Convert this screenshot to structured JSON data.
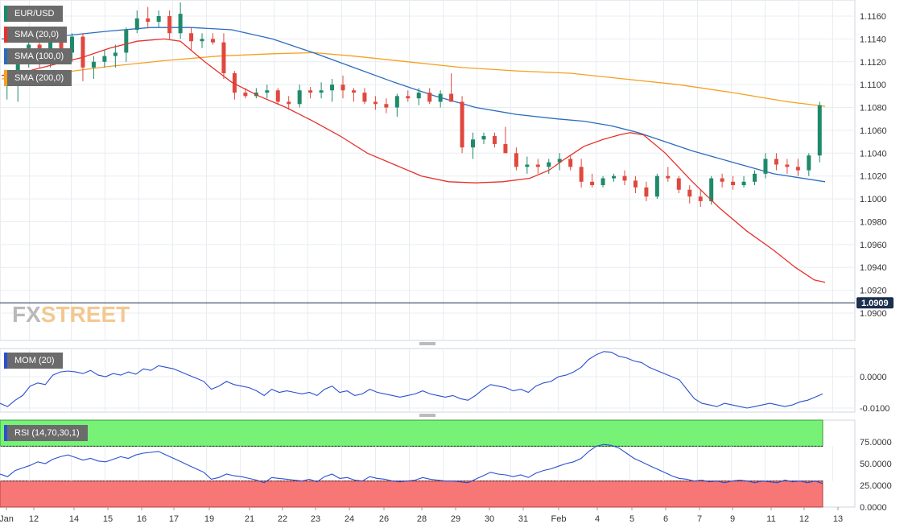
{
  "chart_data": [
    {
      "type": "candlestick",
      "title": "EUR/USD",
      "y_ticks": [
        "1.1160",
        "1.1140",
        "1.1120",
        "1.1100",
        "1.1080",
        "1.1060",
        "1.1040",
        "1.1020",
        "1.1000",
        "1.0980",
        "1.0960",
        "1.0940",
        "1.0920",
        "1.0900"
      ],
      "ylim": [
        1.089,
        1.1172
      ],
      "x_ticks": [
        "Jan",
        "12",
        "14",
        "15",
        "16",
        "17",
        "19",
        "21",
        "22",
        "23",
        "24",
        "26",
        "28",
        "29",
        "30",
        "31",
        "Feb",
        "4",
        "5",
        "6",
        "7",
        "9",
        "11",
        "12",
        "13"
      ],
      "current_price": "1.0909",
      "indicators": [
        {
          "name": "SMA (20,0)",
          "color": "#e8302a"
        },
        {
          "name": "SMA (100,0)",
          "color": "#2a6cbf"
        },
        {
          "name": "SMA (200,0)",
          "color": "#f5a020"
        }
      ],
      "sma20": [
        [
          0,
          1.1108
        ],
        [
          10,
          1.1112
        ],
        [
          20,
          1.1118
        ],
        [
          30,
          1.1124
        ],
        [
          40,
          1.1132
        ],
        [
          50,
          1.1138
        ],
        [
          60,
          1.114
        ],
        [
          66,
          1.1138
        ],
        [
          75,
          1.112
        ],
        [
          85,
          1.1102
        ],
        [
          95,
          1.109
        ],
        [
          105,
          1.108
        ],
        [
          115,
          1.1068
        ],
        [
          125,
          1.1055
        ],
        [
          135,
          1.104
        ],
        [
          145,
          1.103
        ],
        [
          155,
          1.102
        ],
        [
          165,
          1.1015
        ],
        [
          175,
          1.1014
        ],
        [
          185,
          1.1015
        ],
        [
          195,
          1.1018
        ],
        [
          202,
          1.1025
        ],
        [
          208,
          1.1035
        ],
        [
          215,
          1.1046
        ],
        [
          222,
          1.1052
        ],
        [
          228,
          1.1056
        ],
        [
          232,
          1.1058
        ],
        [
          237,
          1.1056
        ],
        [
          245,
          1.104
        ],
        [
          255,
          1.1015
        ],
        [
          265,
          1.0992
        ],
        [
          275,
          1.0972
        ],
        [
          285,
          1.0955
        ],
        [
          293,
          1.094
        ],
        [
          300,
          1.0929
        ],
        [
          304,
          1.0927
        ]
      ],
      "sma100": [
        [
          0,
          1.114
        ],
        [
          20,
          1.1142
        ],
        [
          40,
          1.1147
        ],
        [
          55,
          1.115
        ],
        [
          70,
          1.115
        ],
        [
          85,
          1.1148
        ],
        [
          100,
          1.114
        ],
        [
          115,
          1.1128
        ],
        [
          130,
          1.1115
        ],
        [
          145,
          1.1102
        ],
        [
          160,
          1.109
        ],
        [
          175,
          1.108
        ],
        [
          190,
          1.1074
        ],
        [
          205,
          1.107
        ],
        [
          215,
          1.1068
        ],
        [
          225,
          1.1064
        ],
        [
          235,
          1.1058
        ],
        [
          245,
          1.105
        ],
        [
          255,
          1.1042
        ],
        [
          270,
          1.1032
        ],
        [
          285,
          1.1022
        ],
        [
          304,
          1.1015
        ]
      ],
      "sma200": [
        [
          0,
          1.1105
        ],
        [
          20,
          1.111
        ],
        [
          40,
          1.1116
        ],
        [
          60,
          1.1121
        ],
        [
          80,
          1.1125
        ],
        [
          100,
          1.1127
        ],
        [
          115,
          1.1128
        ],
        [
          130,
          1.1125
        ],
        [
          150,
          1.112
        ],
        [
          170,
          1.1115
        ],
        [
          190,
          1.1112
        ],
        [
          210,
          1.111
        ],
        [
          230,
          1.1105
        ],
        [
          250,
          1.11
        ],
        [
          270,
          1.1093
        ],
        [
          290,
          1.1085
        ],
        [
          304,
          1.1081
        ]
      ],
      "candles": [
        {
          "x": 2,
          "o": 1.11,
          "h": 1.111,
          "l": 1.1087,
          "c": 1.1105
        },
        {
          "x": 6,
          "o": 1.11,
          "h": 1.1125,
          "l": 1.1085,
          "c": 1.112
        },
        {
          "x": 10,
          "o": 1.112,
          "h": 1.1145,
          "l": 1.1115,
          "c": 1.1135
        },
        {
          "x": 14,
          "o": 1.1135,
          "h": 1.1142,
          "l": 1.1115,
          "c": 1.1125
        },
        {
          "x": 18,
          "o": 1.1125,
          "h": 1.115,
          "l": 1.1115,
          "c": 1.1145
        },
        {
          "x": 22,
          "o": 1.1145,
          "h": 1.115,
          "l": 1.112,
          "c": 1.1128
        },
        {
          "x": 26,
          "o": 1.1128,
          "h": 1.1145,
          "l": 1.112,
          "c": 1.1142
        },
        {
          "x": 30,
          "o": 1.1142,
          "h": 1.1145,
          "l": 1.1103,
          "c": 1.1115
        },
        {
          "x": 34,
          "o": 1.1115,
          "h": 1.1125,
          "l": 1.1105,
          "c": 1.112
        },
        {
          "x": 38,
          "o": 1.112,
          "h": 1.113,
          "l": 1.1115,
          "c": 1.1125
        },
        {
          "x": 42,
          "o": 1.1125,
          "h": 1.1135,
          "l": 1.1115,
          "c": 1.1128
        },
        {
          "x": 46,
          "o": 1.1128,
          "h": 1.115,
          "l": 1.112,
          "c": 1.1148
        },
        {
          "x": 50,
          "o": 1.1148,
          "h": 1.1165,
          "l": 1.1145,
          "c": 1.1158
        },
        {
          "x": 54,
          "o": 1.1158,
          "h": 1.1168,
          "l": 1.115,
          "c": 1.1155
        },
        {
          "x": 58,
          "o": 1.1155,
          "h": 1.1165,
          "l": 1.115,
          "c": 1.116
        },
        {
          "x": 62,
          "o": 1.116,
          "h": 1.1165,
          "l": 1.114,
          "c": 1.1145
        },
        {
          "x": 66,
          "o": 1.1145,
          "h": 1.1172,
          "l": 1.114,
          "c": 1.1162
        },
        {
          "x": 70,
          "o": 1.1145,
          "h": 1.115,
          "l": 1.113,
          "c": 1.1138
        },
        {
          "x": 74,
          "o": 1.1138,
          "h": 1.1145,
          "l": 1.1132,
          "c": 1.114
        },
        {
          "x": 78,
          "o": 1.114,
          "h": 1.1145,
          "l": 1.1135,
          "c": 1.1137
        },
        {
          "x": 82,
          "o": 1.1137,
          "h": 1.1145,
          "l": 1.1105,
          "c": 1.111
        },
        {
          "x": 86,
          "o": 1.111,
          "h": 1.1112,
          "l": 1.1087,
          "c": 1.1093
        },
        {
          "x": 90,
          "o": 1.1093,
          "h": 1.1097,
          "l": 1.1088,
          "c": 1.109
        },
        {
          "x": 94,
          "o": 1.109,
          "h": 1.1097,
          "l": 1.1088,
          "c": 1.1093
        },
        {
          "x": 98,
          "o": 1.1093,
          "h": 1.11,
          "l": 1.1088,
          "c": 1.1095
        },
        {
          "x": 102,
          "o": 1.1095,
          "h": 1.1097,
          "l": 1.1083,
          "c": 1.1085
        },
        {
          "x": 106,
          "o": 1.1085,
          "h": 1.109,
          "l": 1.1078,
          "c": 1.1083
        },
        {
          "x": 110,
          "o": 1.1083,
          "h": 1.11,
          "l": 1.108,
          "c": 1.1095
        },
        {
          "x": 114,
          "o": 1.1095,
          "h": 1.1098,
          "l": 1.1088,
          "c": 1.1093
        },
        {
          "x": 118,
          "o": 1.1093,
          "h": 1.1102,
          "l": 1.1088,
          "c": 1.1095
        },
        {
          "x": 122,
          "o": 1.1095,
          "h": 1.1105,
          "l": 1.1085,
          "c": 1.11
        },
        {
          "x": 126,
          "o": 1.11,
          "h": 1.1108,
          "l": 1.1088,
          "c": 1.1095
        },
        {
          "x": 130,
          "o": 1.1095,
          "h": 1.1097,
          "l": 1.1085,
          "c": 1.1093
        },
        {
          "x": 134,
          "o": 1.1093,
          "h": 1.1097,
          "l": 1.1083,
          "c": 1.1085
        },
        {
          "x": 138,
          "o": 1.1085,
          "h": 1.109,
          "l": 1.1078,
          "c": 1.1083
        },
        {
          "x": 142,
          "o": 1.1083,
          "h": 1.1088,
          "l": 1.1075,
          "c": 1.108
        },
        {
          "x": 146,
          "o": 1.108,
          "h": 1.1092,
          "l": 1.1072,
          "c": 1.109
        },
        {
          "x": 150,
          "o": 1.109,
          "h": 1.1095,
          "l": 1.1085,
          "c": 1.1088
        },
        {
          "x": 154,
          "o": 1.1088,
          "h": 1.1097,
          "l": 1.1082,
          "c": 1.1093
        },
        {
          "x": 158,
          "o": 1.1093,
          "h": 1.1097,
          "l": 1.1083,
          "c": 1.1085
        },
        {
          "x": 162,
          "o": 1.1085,
          "h": 1.1095,
          "l": 1.108,
          "c": 1.1092
        },
        {
          "x": 166,
          "o": 1.1092,
          "h": 1.111,
          "l": 1.1085,
          "c": 1.1085
        },
        {
          "x": 170,
          "o": 1.1085,
          "h": 1.109,
          "l": 1.104,
          "c": 1.1045
        },
        {
          "x": 174,
          "o": 1.1045,
          "h": 1.1058,
          "l": 1.1035,
          "c": 1.1052
        },
        {
          "x": 178,
          "o": 1.1052,
          "h": 1.1058,
          "l": 1.1048,
          "c": 1.1055
        },
        {
          "x": 182,
          "o": 1.1055,
          "h": 1.1058,
          "l": 1.1045,
          "c": 1.1048
        },
        {
          "x": 186,
          "o": 1.1048,
          "h": 1.1063,
          "l": 1.104,
          "c": 1.104
        },
        {
          "x": 190,
          "o": 1.104,
          "h": 1.1045,
          "l": 1.1025,
          "c": 1.1028
        },
        {
          "x": 194,
          "o": 1.1028,
          "h": 1.1037,
          "l": 1.1022,
          "c": 1.103
        },
        {
          "x": 198,
          "o": 1.103,
          "h": 1.1035,
          "l": 1.1022,
          "c": 1.1028
        },
        {
          "x": 202,
          "o": 1.1028,
          "h": 1.1035,
          "l": 1.1022,
          "c": 1.1032
        },
        {
          "x": 206,
          "o": 1.1032,
          "h": 1.104,
          "l": 1.1025,
          "c": 1.1035
        },
        {
          "x": 210,
          "o": 1.1035,
          "h": 1.1038,
          "l": 1.1025,
          "c": 1.1028
        },
        {
          "x": 214,
          "o": 1.1028,
          "h": 1.1035,
          "l": 1.101,
          "c": 1.1015
        },
        {
          "x": 218,
          "o": 1.1015,
          "h": 1.1022,
          "l": 1.101,
          "c": 1.1012
        },
        {
          "x": 222,
          "o": 1.1012,
          "h": 1.102,
          "l": 1.101,
          "c": 1.1018
        },
        {
          "x": 226,
          "o": 1.1018,
          "h": 1.1022,
          "l": 1.1015,
          "c": 1.102
        },
        {
          "x": 230,
          "o": 1.102,
          "h": 1.1025,
          "l": 1.1012,
          "c": 1.1016
        },
        {
          "x": 234,
          "o": 1.1016,
          "h": 1.102,
          "l": 1.1005,
          "c": 1.101
        },
        {
          "x": 238,
          "o": 1.101,
          "h": 1.1015,
          "l": 1.0998,
          "c": 1.1002
        },
        {
          "x": 242,
          "o": 1.1002,
          "h": 1.1022,
          "l": 1.1,
          "c": 1.102
        },
        {
          "x": 246,
          "o": 1.102,
          "h": 1.1028,
          "l": 1.1015,
          "c": 1.1018
        },
        {
          "x": 250,
          "o": 1.1018,
          "h": 1.102,
          "l": 1.1005,
          "c": 1.1008
        },
        {
          "x": 254,
          "o": 1.1008,
          "h": 1.1012,
          "l": 1.0996,
          "c": 1.1002
        },
        {
          "x": 258,
          "o": 1.1002,
          "h": 1.1008,
          "l": 1.0993,
          "c": 1.0998
        },
        {
          "x": 262,
          "o": 1.0998,
          "h": 1.102,
          "l": 1.0995,
          "c": 1.1018
        },
        {
          "x": 266,
          "o": 1.1018,
          "h": 1.1022,
          "l": 1.101,
          "c": 1.1015
        },
        {
          "x": 270,
          "o": 1.1015,
          "h": 1.102,
          "l": 1.1008,
          "c": 1.1012
        },
        {
          "x": 274,
          "o": 1.1012,
          "h": 1.102,
          "l": 1.101,
          "c": 1.1015
        },
        {
          "x": 278,
          "o": 1.1015,
          "h": 1.1025,
          "l": 1.1012,
          "c": 1.1022
        },
        {
          "x": 282,
          "o": 1.1022,
          "h": 1.104,
          "l": 1.1018,
          "c": 1.1035
        },
        {
          "x": 286,
          "o": 1.1035,
          "h": 1.104,
          "l": 1.1025,
          "c": 1.103
        },
        {
          "x": 290,
          "o": 1.103,
          "h": 1.1035,
          "l": 1.1022,
          "c": 1.1028
        },
        {
          "x": 294,
          "o": 1.1028,
          "h": 1.1035,
          "l": 1.102,
          "c": 1.1025
        },
        {
          "x": 298,
          "o": 1.1025,
          "h": 1.104,
          "l": 1.102,
          "c": 1.1038
        },
        {
          "x": 302,
          "o": 1.1038,
          "h": 1.1085,
          "l": 1.1032,
          "c": 1.1082
        }
      ]
    },
    {
      "type": "line",
      "title": "MOM (20)",
      "y_ticks": [
        "0.0000",
        "-0.0100"
      ],
      "ylim": [
        -0.0115,
        0.009
      ],
      "values": [
        -0.0085,
        -0.0095,
        -0.0075,
        -0.006,
        -0.003,
        -0.002,
        -0.0025,
        0.0005,
        0.0015,
        0.0018,
        0.0015,
        0.001,
        0.002,
        0.0005,
        0.0,
        0.001,
        0.0005,
        0.0015,
        0.0008,
        0.0025,
        0.002,
        0.0035,
        0.003,
        0.0025,
        0.0015,
        0.0005,
        -0.0005,
        -0.0015,
        -0.004,
        -0.003,
        -0.0015,
        -0.0025,
        -0.003,
        -0.0035,
        -0.0045,
        -0.006,
        -0.004,
        -0.005,
        -0.0045,
        -0.005,
        -0.0055,
        -0.005,
        -0.006,
        -0.004,
        -0.003,
        -0.005,
        -0.0045,
        -0.006,
        -0.0055,
        -0.004,
        -0.005,
        -0.0055,
        -0.006,
        -0.0065,
        -0.006,
        -0.0055,
        -0.0045,
        -0.0055,
        -0.006,
        -0.0065,
        -0.006,
        -0.007,
        -0.0075,
        -0.006,
        -0.004,
        -0.0025,
        -0.003,
        -0.0035,
        -0.0045,
        -0.004,
        -0.005,
        -0.003,
        -0.002,
        -0.0015,
        0.0,
        0.0005,
        0.0015,
        0.003,
        0.0055,
        0.007,
        0.008,
        0.0078,
        0.0065,
        0.006,
        0.005,
        0.0045,
        0.003,
        0.002,
        0.001,
        0.0,
        -0.001,
        -0.004,
        -0.007,
        -0.0085,
        -0.009,
        -0.0095,
        -0.0085,
        -0.009,
        -0.0095,
        -0.01,
        -0.0095,
        -0.009,
        -0.0085,
        -0.009,
        -0.0095,
        -0.009,
        -0.008,
        -0.0075,
        -0.0065,
        -0.0055
      ]
    },
    {
      "type": "line",
      "title": "RSI (14,70,30,1)",
      "y_ticks": [
        "75.0000",
        "50.0000",
        "25.0000",
        "0.0000"
      ],
      "ylim": [
        0,
        100
      ],
      "overbought": 70,
      "oversold": 30,
      "zone_colors": {
        "overbought": "#77f277",
        "oversold": "#f77777"
      },
      "values": [
        38,
        35,
        42,
        45,
        48,
        52,
        50,
        55,
        58,
        60,
        57,
        54,
        56,
        53,
        52,
        55,
        58,
        56,
        60,
        62,
        63,
        64,
        60,
        56,
        52,
        48,
        44,
        40,
        32,
        34,
        38,
        36,
        35,
        33,
        31,
        28,
        34,
        33,
        32,
        31,
        30,
        32,
        29,
        35,
        38,
        33,
        34,
        31,
        30,
        35,
        33,
        32,
        30,
        29,
        30,
        31,
        34,
        32,
        31,
        30,
        30,
        29,
        28,
        32,
        36,
        40,
        38,
        37,
        35,
        37,
        34,
        39,
        42,
        44,
        47,
        50,
        52,
        56,
        64,
        70,
        72,
        71,
        68,
        62,
        56,
        52,
        48,
        44,
        40,
        36,
        33,
        32,
        30,
        31,
        29,
        30,
        28,
        30,
        31,
        30,
        28,
        30,
        29,
        28,
        31,
        29,
        30,
        28,
        30,
        27
      ]
    }
  ]
}
